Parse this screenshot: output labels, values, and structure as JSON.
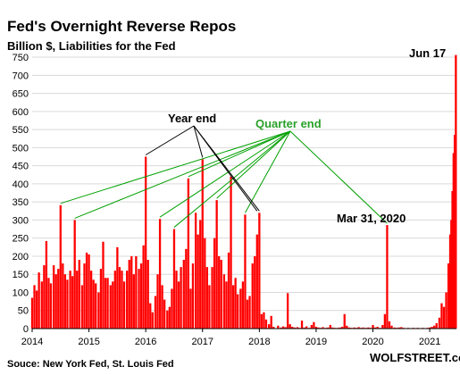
{
  "chart_data": {
    "type": "bar",
    "title": "Fed's Overnight Reverse Repos",
    "subtitle": "Billion $, Liabilities for the Fed",
    "ylim": [
      0,
      760
    ],
    "yticks": [
      "0",
      "50",
      "100",
      "150",
      "200",
      "250",
      "300",
      "350",
      "400",
      "450",
      "500",
      "550",
      "600",
      "650",
      "700",
      "750"
    ],
    "xlim": [
      2014.0,
      2021.47
    ],
    "xticks": [
      "2014",
      "2015",
      "2016",
      "2017",
      "2018",
      "2019",
      "2020",
      "2021"
    ],
    "grid": true,
    "bar_color": "#ff0000",
    "series": [
      {
        "values": [
          [
            2014.0,
            85
          ],
          [
            2014.04,
            120
          ],
          [
            2014.08,
            105
          ],
          [
            2014.12,
            155
          ],
          [
            2014.17,
            130
          ],
          [
            2014.21,
            175
          ],
          [
            2014.25,
            242
          ],
          [
            2014.29,
            140
          ],
          [
            2014.33,
            125
          ],
          [
            2014.38,
            175
          ],
          [
            2014.42,
            150
          ],
          [
            2014.46,
            165
          ],
          [
            2014.5,
            341
          ],
          [
            2014.54,
            180
          ],
          [
            2014.58,
            150
          ],
          [
            2014.62,
            135
          ],
          [
            2014.67,
            160
          ],
          [
            2014.71,
            145
          ],
          [
            2014.75,
            300
          ],
          [
            2014.79,
            160
          ],
          [
            2014.83,
            190
          ],
          [
            2014.88,
            120
          ],
          [
            2014.92,
            180
          ],
          [
            2014.96,
            210
          ],
          [
            2015.0,
            205
          ],
          [
            2015.04,
            160
          ],
          [
            2015.08,
            135
          ],
          [
            2015.12,
            125
          ],
          [
            2015.17,
            100
          ],
          [
            2015.21,
            165
          ],
          [
            2015.25,
            240
          ],
          [
            2015.29,
            140
          ],
          [
            2015.33,
            140
          ],
          [
            2015.38,
            120
          ],
          [
            2015.42,
            130
          ],
          [
            2015.46,
            160
          ],
          [
            2015.5,
            225
          ],
          [
            2015.54,
            170
          ],
          [
            2015.58,
            160
          ],
          [
            2015.62,
            130
          ],
          [
            2015.67,
            160
          ],
          [
            2015.71,
            190
          ],
          [
            2015.75,
            200
          ],
          [
            2015.79,
            150
          ],
          [
            2015.83,
            200
          ],
          [
            2015.88,
            165
          ],
          [
            2015.92,
            180
          ],
          [
            2015.96,
            230
          ],
          [
            2016.0,
            475
          ],
          [
            2016.04,
            190
          ],
          [
            2016.08,
            70
          ],
          [
            2016.12,
            45
          ],
          [
            2016.17,
            90
          ],
          [
            2016.21,
            150
          ],
          [
            2016.25,
            303
          ],
          [
            2016.29,
            120
          ],
          [
            2016.33,
            80
          ],
          [
            2016.38,
            50
          ],
          [
            2016.42,
            60
          ],
          [
            2016.46,
            110
          ],
          [
            2016.5,
            275
          ],
          [
            2016.54,
            160
          ],
          [
            2016.58,
            130
          ],
          [
            2016.62,
            170
          ],
          [
            2016.67,
            190
          ],
          [
            2016.71,
            220
          ],
          [
            2016.75,
            415
          ],
          [
            2016.79,
            110
          ],
          [
            2016.83,
            180
          ],
          [
            2016.88,
            320
          ],
          [
            2016.92,
            260
          ],
          [
            2016.96,
            300
          ],
          [
            2017.0,
            468
          ],
          [
            2017.04,
            250
          ],
          [
            2017.08,
            170
          ],
          [
            2017.12,
            120
          ],
          [
            2017.17,
            170
          ],
          [
            2017.21,
            250
          ],
          [
            2017.25,
            355
          ],
          [
            2017.29,
            200
          ],
          [
            2017.33,
            190
          ],
          [
            2017.38,
            150
          ],
          [
            2017.42,
            130
          ],
          [
            2017.46,
            210
          ],
          [
            2017.5,
            420
          ],
          [
            2017.54,
            120
          ],
          [
            2017.58,
            140
          ],
          [
            2017.62,
            95
          ],
          [
            2017.67,
            110
          ],
          [
            2017.71,
            130
          ],
          [
            2017.75,
            315
          ],
          [
            2017.79,
            80
          ],
          [
            2017.83,
            90
          ],
          [
            2017.88,
            180
          ],
          [
            2017.92,
            200
          ],
          [
            2017.96,
            260
          ],
          [
            2018.0,
            320
          ],
          [
            2018.04,
            40
          ],
          [
            2018.08,
            45
          ],
          [
            2018.12,
            25
          ],
          [
            2018.17,
            12
          ],
          [
            2018.21,
            35
          ],
          [
            2018.25,
            5
          ],
          [
            2018.33,
            8
          ],
          [
            2018.38,
            3
          ],
          [
            2018.42,
            6
          ],
          [
            2018.46,
            4
          ],
          [
            2018.5,
            98
          ],
          [
            2018.54,
            12
          ],
          [
            2018.58,
            5
          ],
          [
            2018.62,
            3
          ],
          [
            2018.67,
            4
          ],
          [
            2018.71,
            2
          ],
          [
            2018.75,
            22
          ],
          [
            2018.79,
            3
          ],
          [
            2018.83,
            6
          ],
          [
            2018.88,
            2
          ],
          [
            2018.92,
            10
          ],
          [
            2018.96,
            18
          ],
          [
            2019.0,
            5
          ],
          [
            2019.04,
            3
          ],
          [
            2019.08,
            2
          ],
          [
            2019.12,
            4
          ],
          [
            2019.17,
            2
          ],
          [
            2019.21,
            3
          ],
          [
            2019.25,
            10
          ],
          [
            2019.29,
            3
          ],
          [
            2019.33,
            2
          ],
          [
            2019.38,
            2
          ],
          [
            2019.42,
            3
          ],
          [
            2019.46,
            5
          ],
          [
            2019.5,
            40
          ],
          [
            2019.54,
            8
          ],
          [
            2019.58,
            3
          ],
          [
            2019.62,
            2
          ],
          [
            2019.67,
            3
          ],
          [
            2019.71,
            2
          ],
          [
            2019.75,
            4
          ],
          [
            2019.79,
            2
          ],
          [
            2019.83,
            3
          ],
          [
            2019.88,
            2
          ],
          [
            2019.92,
            3
          ],
          [
            2019.96,
            2
          ],
          [
            2020.0,
            10
          ],
          [
            2020.04,
            3
          ],
          [
            2020.08,
            5
          ],
          [
            2020.12,
            2
          ],
          [
            2020.17,
            10
          ],
          [
            2020.21,
            40
          ],
          [
            2020.25,
            286
          ],
          [
            2020.29,
            20
          ],
          [
            2020.33,
            8
          ],
          [
            2020.38,
            3
          ],
          [
            2020.42,
            2
          ],
          [
            2020.46,
            3
          ],
          [
            2020.5,
            4
          ],
          [
            2020.54,
            2
          ],
          [
            2020.58,
            1
          ],
          [
            2020.62,
            2
          ],
          [
            2020.67,
            1
          ],
          [
            2020.71,
            2
          ],
          [
            2020.75,
            1
          ],
          [
            2020.79,
            2
          ],
          [
            2020.83,
            1
          ],
          [
            2020.88,
            2
          ],
          [
            2020.92,
            1
          ],
          [
            2020.96,
            2
          ],
          [
            2021.0,
            3
          ],
          [
            2021.04,
            5
          ],
          [
            2021.08,
            8
          ],
          [
            2021.12,
            15
          ],
          [
            2021.17,
            30
          ],
          [
            2021.21,
            70
          ],
          [
            2021.25,
            60
          ],
          [
            2021.29,
            100
          ],
          [
            2021.33,
            180
          ],
          [
            2021.36,
            260
          ],
          [
            2021.38,
            300
          ],
          [
            2021.4,
            380
          ],
          [
            2021.42,
            485
          ],
          [
            2021.44,
            535
          ],
          [
            2021.46,
            756
          ]
        ]
      }
    ],
    "annotations": {
      "year_end": "Year end",
      "quarter_end": "Quarter end",
      "mar_31_2020": "Mar 31, 2020",
      "jun_17": "Jun 17"
    }
  },
  "footer": {
    "source": "Souce: New York Fed, St. Louis Fed",
    "brand": "WOLFSTREET.com"
  },
  "colors": {
    "year_end_line": "#000000",
    "quarter_end_line": "#00a000",
    "quarter_end_text": "#2aa12a"
  }
}
